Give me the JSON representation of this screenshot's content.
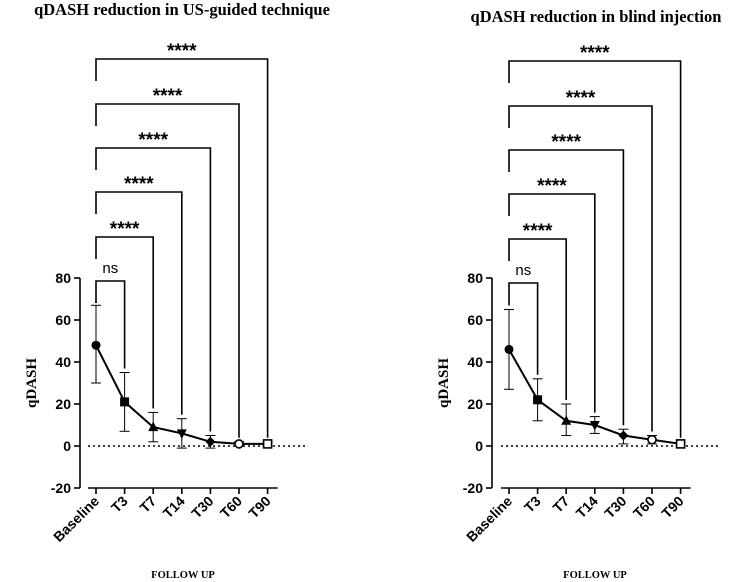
{
  "chart_data": [
    {
      "type": "line",
      "title": "qDASH reduction in US-guided technique",
      "xlabel": "FOLLOW UP",
      "ylabel": "qDASH",
      "ylim": [
        -20,
        80
      ],
      "yticks": [
        -20,
        0,
        20,
        40,
        60,
        80
      ],
      "categories": [
        "Baseline",
        "T3",
        "T7",
        "T14",
        "T30",
        "T60",
        "T90"
      ],
      "series": [
        {
          "name": "qDASH",
          "values": [
            48,
            21,
            9,
            6,
            2,
            1,
            1
          ],
          "err_upper": [
            67,
            35,
            16,
            13,
            5,
            2,
            2
          ],
          "err_lower": [
            30,
            7,
            2,
            -1,
            -1,
            0,
            0
          ],
          "markers": [
            "circle",
            "square",
            "triangle",
            "triangle-down",
            "diamond",
            "circle-open",
            "square-open"
          ]
        }
      ],
      "reference_line": 0,
      "comparisons": [
        {
          "from": "Baseline",
          "to": "T3",
          "label": "ns"
        },
        {
          "from": "Baseline",
          "to": "T7",
          "label": "****"
        },
        {
          "from": "Baseline",
          "to": "T14",
          "label": "****"
        },
        {
          "from": "Baseline",
          "to": "T30",
          "label": "****"
        },
        {
          "from": "Baseline",
          "to": "T60",
          "label": "****"
        },
        {
          "from": "Baseline",
          "to": "T90",
          "label": "****"
        }
      ]
    },
    {
      "type": "line",
      "title": "qDASH reduction in blind injection",
      "xlabel": "FOLLOW UP",
      "ylabel": "qDASH",
      "ylim": [
        -20,
        80
      ],
      "yticks": [
        -20,
        0,
        20,
        40,
        60,
        80
      ],
      "categories": [
        "Baseline",
        "T3",
        "T7",
        "T14",
        "T30",
        "T60",
        "T90"
      ],
      "series": [
        {
          "name": "qDASH",
          "values": [
            46,
            22,
            12,
            10,
            5,
            3,
            1
          ],
          "err_upper": [
            65,
            32,
            20,
            14,
            8,
            5,
            2
          ],
          "err_lower": [
            27,
            12,
            5,
            6,
            1,
            1,
            0
          ],
          "markers": [
            "circle",
            "square",
            "triangle",
            "triangle-down",
            "diamond",
            "circle-open",
            "square-open"
          ]
        }
      ],
      "reference_line": 0,
      "comparisons": [
        {
          "from": "Baseline",
          "to": "T3",
          "label": "ns"
        },
        {
          "from": "Baseline",
          "to": "T7",
          "label": "****"
        },
        {
          "from": "Baseline",
          "to": "T14",
          "label": "****"
        },
        {
          "from": "Baseline",
          "to": "T30",
          "label": "****"
        },
        {
          "from": "Baseline",
          "to": "T60",
          "label": "****"
        },
        {
          "from": "Baseline",
          "to": "T90",
          "label": "****"
        }
      ]
    }
  ]
}
